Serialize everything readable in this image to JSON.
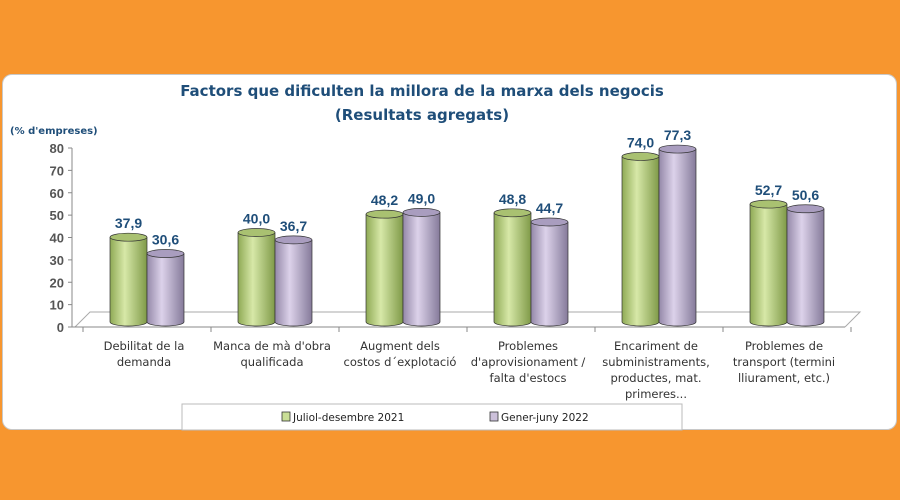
{
  "chart_data": {
    "type": "bar",
    "title": "Factors que dificulten la millora de la marxa dels negocis",
    "subtitle": "(Resultats agregats)",
    "ylabel": "(% d'empreses)",
    "ylim": [
      0,
      80
    ],
    "yticks": [
      0,
      10,
      20,
      30,
      40,
      50,
      60,
      70,
      80
    ],
    "categories": [
      [
        "Debilitat de la",
        "demanda"
      ],
      [
        "Manca de mà d'obra",
        "qualificada"
      ],
      [
        "Augment dels",
        "costos d´explotació"
      ],
      [
        "Problemes",
        "d'aprovisionament /",
        "falta d'estocs"
      ],
      [
        "Encariment de",
        "subministraments,",
        "productes, mat.",
        "primeres..."
      ],
      [
        "Problemes de",
        "transport (termini",
        "lliurament, etc.)"
      ]
    ],
    "series": [
      {
        "name": "Juliol-desembre 2021",
        "color": "#C9DE96",
        "values": [
          37.9,
          40.0,
          48.2,
          48.8,
          74.0,
          52.7
        ],
        "labels": [
          "37,9",
          "40,0",
          "48,2",
          "48,8",
          "74,0",
          "52,7"
        ]
      },
      {
        "name": "Gener-juny 2022",
        "color": "#CCC0DA",
        "values": [
          30.6,
          36.7,
          49.0,
          44.7,
          77.3,
          50.6
        ],
        "labels": [
          "30,6",
          "36,7",
          "49,0",
          "44,7",
          "77,3",
          "50,6"
        ]
      }
    ],
    "legend_position": "bottom",
    "grid": false,
    "style": "3d-cylinder"
  },
  "colors": {
    "background": "#F7962F",
    "title": "#1F4E79"
  }
}
